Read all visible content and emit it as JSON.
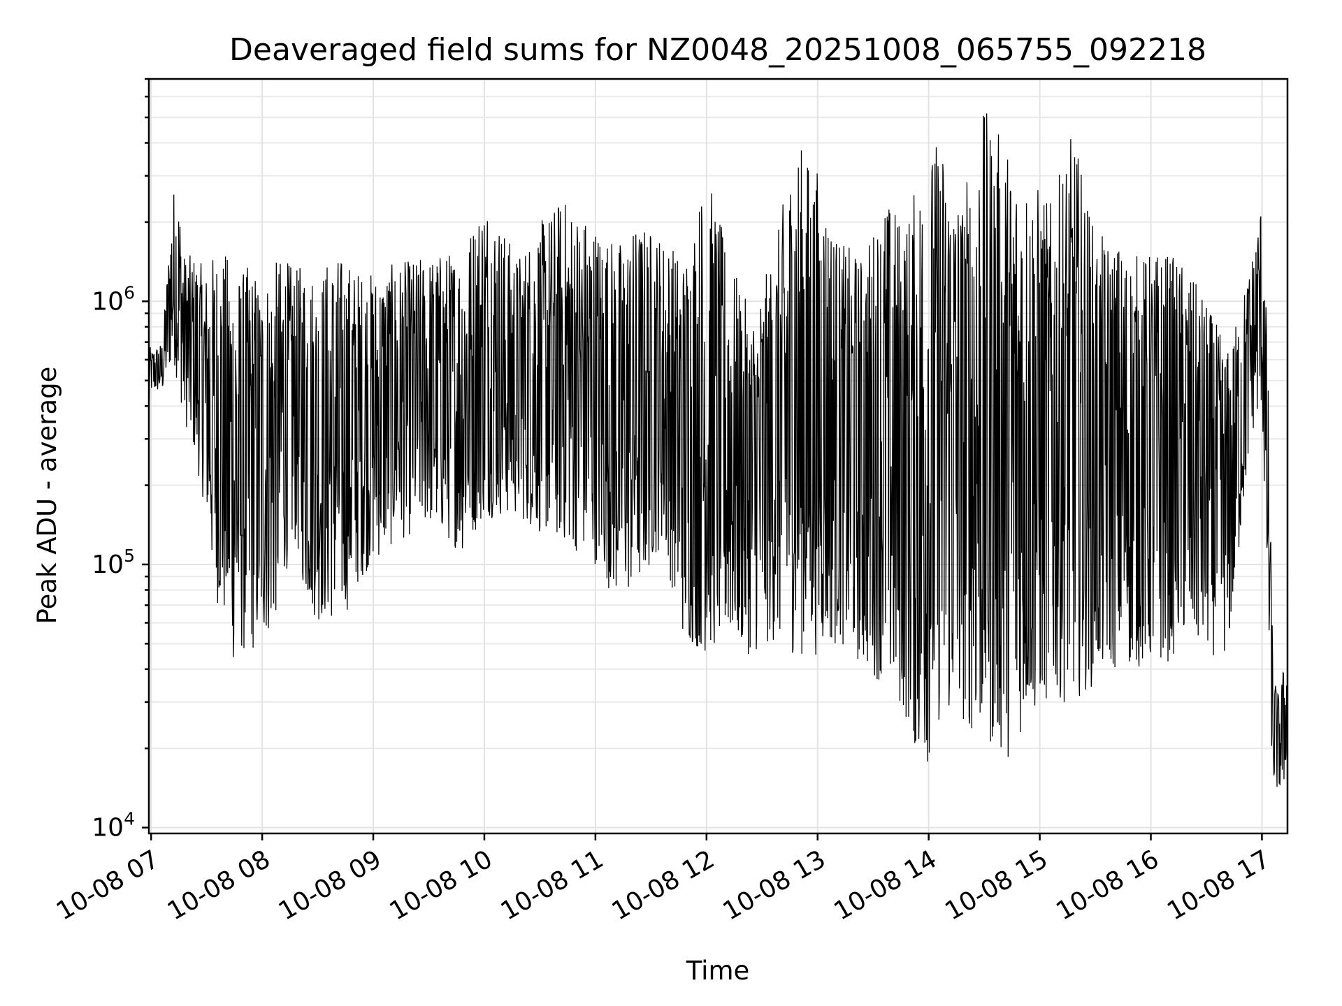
{
  "chart_data": {
    "type": "line",
    "title": "Deaveraged field sums for NZ0048_20251008_065755_092218",
    "xlabel": "Time",
    "ylabel": "Peak ADU - average",
    "yscale": "log",
    "ylim": [
      9500,
      7000000
    ],
    "xlim_hours": [
      6.98,
      17.23
    ],
    "grid": true,
    "x_tick_hours": [
      7,
      8,
      9,
      10,
      11,
      12,
      13,
      14,
      15,
      16,
      17
    ],
    "x_tick_labels": [
      "10-08 07",
      "10-08 08",
      "10-08 09",
      "10-08 10",
      "10-08 11",
      "10-08 12",
      "10-08 13",
      "10-08 14",
      "10-08 15",
      "10-08 16",
      "10-08 17"
    ],
    "y_ticks": [
      {
        "value": 10000,
        "base": "10",
        "exp": "4"
      },
      {
        "value": 100000,
        "base": "10",
        "exp": "5"
      },
      {
        "value": 1000000,
        "base": "10",
        "exp": "6"
      }
    ],
    "series": [
      {
        "name": "Peak ADU - average",
        "x": [
          6.98,
          7.0,
          7.1,
          7.2,
          7.25,
          7.3,
          7.4,
          7.5,
          7.55,
          7.6,
          7.7,
          7.75,
          7.8,
          7.9,
          8.0,
          8.1,
          8.2,
          8.3,
          8.4,
          8.5,
          8.6,
          8.7,
          8.8,
          8.9,
          9.0,
          9.2,
          9.5,
          9.8,
          10.0,
          10.3,
          10.5,
          10.7,
          11.0,
          11.2,
          11.4,
          11.6,
          11.8,
          12.0,
          12.2,
          12.4,
          12.6,
          12.8,
          13.0,
          13.2,
          13.4,
          13.6,
          13.8,
          13.95,
          14.1,
          14.3,
          14.5,
          14.7,
          14.9,
          15.1,
          15.3,
          15.5,
          15.7,
          15.9,
          16.1,
          16.3,
          16.5,
          16.7,
          16.9,
          17.0,
          17.05,
          17.1,
          17.15,
          17.2,
          17.23
        ],
        "low": [
          350000,
          450000,
          450000,
          600000,
          450000,
          350000,
          250000,
          150000,
          90000,
          70000,
          50000,
          40000,
          45000,
          45000,
          50000,
          55000,
          90000,
          120000,
          70000,
          60000,
          60000,
          60000,
          70000,
          90000,
          100000,
          120000,
          140000,
          110000,
          150000,
          150000,
          130000,
          120000,
          100000,
          70000,
          80000,
          120000,
          50000,
          45000,
          50000,
          45000,
          50000,
          45000,
          45000,
          50000,
          40000,
          35000,
          25000,
          15000,
          25000,
          25000,
          20000,
          18000,
          25000,
          30000,
          30000,
          35000,
          40000,
          40000,
          40000,
          50000,
          45000,
          45000,
          300000,
          400000,
          60000,
          14000,
          13500,
          14000,
          22000
        ],
        "high": [
          700000,
          650000,
          700000,
          2700000,
          2500000,
          1500000,
          1500000,
          1300000,
          1500000,
          1600000,
          1500000,
          1400000,
          1300000,
          1400000,
          1200000,
          1400000,
          1500000,
          1300000,
          1500000,
          1200000,
          1500000,
          1500000,
          1400000,
          1300000,
          1300000,
          1400000,
          1500000,
          1600000,
          2600000,
          1500000,
          2000000,
          2500000,
          2000000,
          1700000,
          2000000,
          1800000,
          1500000,
          3200000,
          1500000,
          900000,
          1500000,
          4200000,
          3200000,
          1700000,
          1500000,
          2500000,
          2100000,
          3500000,
          4300000,
          2600000,
          5400000,
          4000000,
          3100000,
          2400000,
          4500000,
          1800000,
          1700000,
          1500000,
          1600000,
          1400000,
          1000000,
          650000,
          1400000,
          2500000,
          700000,
          40000,
          32000,
          42000,
          40000
        ]
      }
    ]
  }
}
